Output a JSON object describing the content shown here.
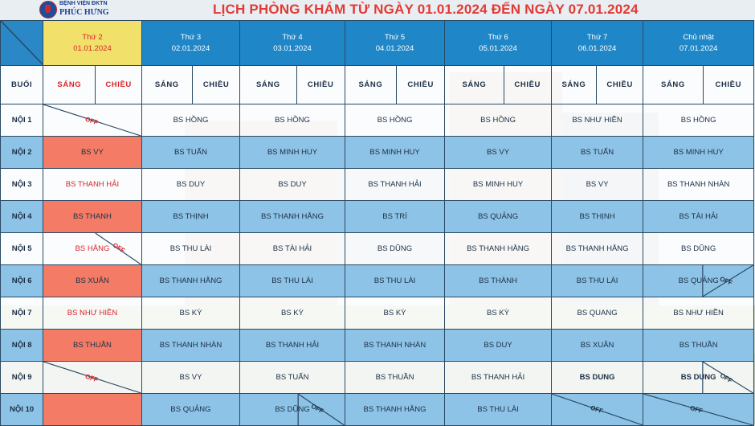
{
  "hospital": {
    "line1": "BỆNH VIỆN ĐKTN",
    "line2": "PHÚC HƯNG"
  },
  "title": "LỊCH PHÒNG KHÁM TỪ NGÀY 01.01.2024 ĐẾN NGÀY 07.01.2024",
  "colors": {
    "title": "#e23a33",
    "header": "#1f86c8",
    "holiday": "#f1e06a",
    "row_blue": "#8dc3e6",
    "holiday_cell": "#f47c66",
    "red_text": "#d8262a"
  },
  "days": [
    {
      "label": "Thứ 2",
      "date": "01.01.2024"
    },
    {
      "label": "Thứ 3",
      "date": "02.01.2024"
    },
    {
      "label": "Thứ 4",
      "date": "03.01.2024"
    },
    {
      "label": "Thứ 5",
      "date": "04.01.2024"
    },
    {
      "label": "Thứ 6",
      "date": "05.01.2024"
    },
    {
      "label": "Thứ 7",
      "date": "06.01.2024"
    },
    {
      "label": "Chủ nhật",
      "date": "07.01.2024"
    }
  ],
  "session_label": "BUỔI",
  "sang": "SÁNG",
  "chieu": "CHIỀU",
  "off": "OFF",
  "rows": [
    {
      "label": "NỘI 1",
      "cells": [
        "",
        "BS HỒNG",
        "BS HỒNG",
        "BS HỒNG",
        "BS HỒNG",
        "BS NHƯ HIỀN",
        "BS HỒNG"
      ]
    },
    {
      "label": "NỘI 2",
      "cells": [
        "BS VY",
        "BS TUẤN",
        "BS MINH HUY",
        "BS MINH HUY",
        "BS VY",
        "BS TUẤN",
        "BS MINH HUY"
      ]
    },
    {
      "label": "NỘI 3",
      "cells": [
        "BS THANH HẢI",
        "BS DUY",
        "BS DUY",
        "BS THANH HẢI",
        "BS MINH HUY",
        "BS VY",
        "BS THANH NHÀN"
      ]
    },
    {
      "label": "NỘI 4",
      "cells": [
        "BS THANH",
        "BS THỊNH",
        "BS THANH HẰNG",
        "BS TRÍ",
        "BS QUẢNG",
        "BS THỊNH",
        "BS TÀI HẢI"
      ]
    },
    {
      "label": "NỘI 5",
      "cells": [
        "BS HẰNG",
        "BS THU LÀI",
        "BS TÀI HẢI",
        "BS DŨNG",
        "BS THANH HẰNG",
        "BS THANH HẰNG",
        "BS DŨNG"
      ]
    },
    {
      "label": "NỘI 6",
      "cells": [
        "BS XUÂN",
        "BS THANH HẰNG",
        "BS THU LÀI",
        "BS THU LÀI",
        "BS THÀNH",
        "BS THU LÀI",
        "BS QUẢNG"
      ]
    },
    {
      "label": "NỘI 7",
      "cells": [
        "BS NHƯ HIỀN",
        "BS KỲ",
        "BS KỲ",
        "BS KỲ",
        "BS KỲ",
        "BS QUANG",
        "BS NHƯ HIỀN"
      ]
    },
    {
      "label": "NỘI 8",
      "cells": [
        "BS THUẦN",
        "BS THANH NHÀN",
        "BS THANH HẢI",
        "BS THANH NHÀN",
        "BS DUY",
        "BS XUÂN",
        "BS THUẦN"
      ]
    },
    {
      "label": "NỘI 9",
      "cells": [
        "",
        "BS VY",
        "BS TUẤN",
        "BS THUẦN",
        "BS THANH HẢI",
        "BS DUNG",
        "BS DUNG"
      ]
    },
    {
      "label": "NỘI 10",
      "cells": [
        "",
        "BS QUẢNG",
        "BS DŨNG",
        "BS THANH HẰNG",
        "BS THU LÀI",
        "",
        ""
      ]
    }
  ]
}
